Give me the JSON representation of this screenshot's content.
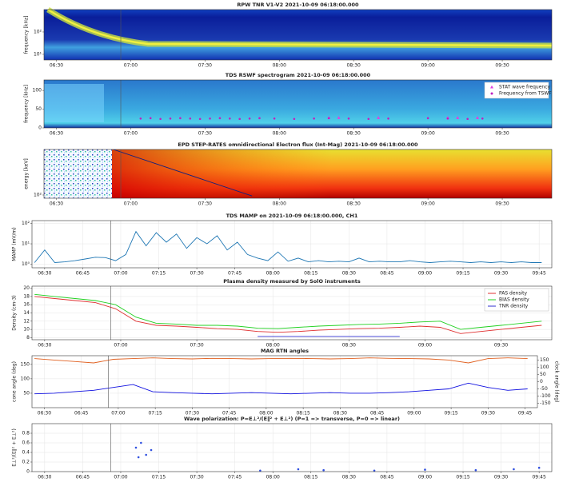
{
  "chart_data": [
    {
      "type": "heatmap",
      "title": "RPW TNR V1-V2 2021-10-09 06:18:00.000",
      "ylabel": "frequency [kHz]",
      "yscale": "log",
      "ylim": [
        5.6,
        1000
      ],
      "yticks": [
        {
          "value": 10,
          "label": "10¹"
        },
        {
          "value": 100,
          "label": "10²"
        }
      ],
      "xlim": [
        385,
        590
      ],
      "xticks": [
        {
          "value": 390,
          "label": "06:30"
        },
        {
          "value": 420,
          "label": "07:00"
        },
        {
          "value": 450,
          "label": "07:30"
        },
        {
          "value": 480,
          "label": "08:00"
        },
        {
          "value": 510,
          "label": "08:30"
        },
        {
          "value": 540,
          "label": "09:00"
        },
        {
          "value": 570,
          "label": "09:30"
        }
      ],
      "vline": 416
    },
    {
      "type": "heatmap",
      "title": "TDS RSWF spectrogram 2021-10-09 06:18:00.000",
      "ylabel": "frequency [kHz]",
      "ylim": [
        0,
        128
      ],
      "yticks": [
        0,
        50,
        100
      ],
      "xlim": [
        385,
        590
      ],
      "xticks": [
        {
          "value": 390,
          "label": "06:30"
        },
        {
          "value": 420,
          "label": "07:00"
        },
        {
          "value": 450,
          "label": "07:30"
        },
        {
          "value": 480,
          "label": "08:00"
        },
        {
          "value": 510,
          "label": "08:30"
        },
        {
          "value": 540,
          "label": "09:00"
        },
        {
          "value": 570,
          "label": "09:30"
        }
      ],
      "vline": 416,
      "legend": "upper right",
      "series": [
        {
          "name": "STAT wave frequency",
          "color": "#e040e0",
          "marker": "triangle",
          "x": [
            500,
            504,
            520,
            548,
            552,
            560
          ],
          "values": [
            27,
            27,
            27,
            27,
            27,
            27
          ]
        },
        {
          "name": "Frequency from TSWF",
          "color": "#c020c0",
          "marker": "dot",
          "x": [
            424,
            428,
            432,
            436,
            440,
            444,
            448,
            452,
            456,
            460,
            464,
            468,
            472,
            478,
            486,
            494,
            500,
            508,
            516,
            524,
            540,
            548,
            556,
            562
          ],
          "values": [
            25,
            26,
            24,
            25,
            26,
            25,
            24,
            25,
            26,
            25,
            24,
            25,
            26,
            25,
            24,
            25,
            26,
            25,
            24,
            25,
            26,
            25,
            24,
            25
          ]
        }
      ]
    },
    {
      "type": "heatmap",
      "title": "EPD STEP-RATES omnidirectional Electron flux (Int-Mag) 2021-10-09 06:18:00.000",
      "ylabel": "energy [keV]",
      "yscale": "log",
      "ylim": [
        85,
        1000
      ],
      "yticks": [
        {
          "value": 100,
          "label": "10²"
        }
      ],
      "xlim": [
        385,
        590
      ],
      "xticks": [
        {
          "value": 390,
          "label": "06:30"
        },
        {
          "value": 420,
          "label": "07:00"
        },
        {
          "value": 450,
          "label": "07:30"
        },
        {
          "value": 480,
          "label": "08:00"
        },
        {
          "value": 510,
          "label": "08:30"
        },
        {
          "value": 540,
          "label": "09:00"
        },
        {
          "value": 570,
          "label": "09:30"
        }
      ],
      "vline": 416,
      "series": [
        {
          "color": "#102080",
          "marker": "line",
          "x": [
            413,
            469
          ],
          "values": [
            1000,
            95
          ]
        }
      ]
    },
    {
      "type": "line",
      "title": "TDS MAMP on 2021-10-09 06:18:00.000, CH1",
      "ylabel": "MAMP (mV/m)",
      "yscale": "log",
      "ylim": [
        0.67,
        137
      ],
      "yticks": [
        {
          "value": 1,
          "label": "10⁰"
        },
        {
          "value": 10,
          "label": "10¹"
        },
        {
          "value": 100,
          "label": "10²"
        }
      ],
      "xlim": [
        385,
        590
      ],
      "xticks": [
        {
          "value": 390,
          "label": "06:30"
        },
        {
          "value": 405,
          "label": "06:45"
        },
        {
          "value": 420,
          "label": "07:00"
        },
        {
          "value": 435,
          "label": "07:15"
        },
        {
          "value": 450,
          "label": "07:30"
        },
        {
          "value": 465,
          "label": "07:45"
        },
        {
          "value": 480,
          "label": "08:00"
        },
        {
          "value": 495,
          "label": "08:15"
        },
        {
          "value": 510,
          "label": "08:30"
        },
        {
          "value": 525,
          "label": "08:45"
        },
        {
          "value": 540,
          "label": "09:00"
        },
        {
          "value": 555,
          "label": "09:15"
        },
        {
          "value": 570,
          "label": "09:30"
        },
        {
          "value": 585,
          "label": "09:45"
        }
      ],
      "vline": 416,
      "x": [
        386,
        390,
        394,
        398,
        402,
        406,
        410,
        414,
        418,
        422,
        426,
        430,
        434,
        438,
        442,
        446,
        450,
        454,
        458,
        462,
        466,
        470,
        474,
        478,
        482,
        486,
        490,
        494,
        498,
        502,
        506,
        510,
        514,
        518,
        522,
        526,
        530,
        534,
        538,
        542,
        546,
        550,
        554,
        558,
        562,
        566,
        570,
        574,
        578,
        582,
        586
      ],
      "series": [
        {
          "color": "#1f77b4",
          "values": [
            1.2,
            5,
            1.2,
            1.3,
            1.5,
            1.8,
            2.2,
            2.1,
            1.5,
            3,
            40,
            8,
            35,
            12,
            30,
            6,
            20,
            10,
            25,
            5,
            12,
            3,
            2,
            1.5,
            4,
            1.4,
            2,
            1.3,
            1.5,
            1.3,
            1.4,
            1.3,
            2,
            1.3,
            1.4,
            1.3,
            1.3,
            1.5,
            1.3,
            1.2,
            1.3,
            1.4,
            1.3,
            1.2,
            1.3,
            1.2,
            1.3,
            1.2,
            1.3,
            1.2,
            1.2
          ]
        }
      ]
    },
    {
      "type": "line",
      "title": "Plasma density measured by SolO instruments",
      "ylabel": "Density (cm-3)",
      "ylim": [
        7.5,
        20.5
      ],
      "yticks": [
        8,
        10,
        12,
        14,
        16,
        18,
        20
      ],
      "xlim": [
        385,
        590
      ],
      "xticks": [
        {
          "value": 390,
          "label": "06:30"
        },
        {
          "value": 420,
          "label": "07:00"
        },
        {
          "value": 450,
          "label": "07:30"
        },
        {
          "value": 480,
          "label": "08:00"
        },
        {
          "value": 510,
          "label": "08:30"
        },
        {
          "value": 540,
          "label": "09:00"
        },
        {
          "value": 570,
          "label": "09:30"
        }
      ],
      "vline": 416,
      "legend": "upper right",
      "x": [
        386,
        394,
        402,
        410,
        418,
        426,
        434,
        442,
        450,
        458,
        466,
        474,
        482,
        490,
        498,
        506,
        514,
        522,
        530,
        538,
        546,
        554,
        562,
        570,
        578,
        586
      ],
      "series": [
        {
          "name": "PAS density",
          "color": "#e03030",
          "values": [
            18,
            17.5,
            17,
            16.5,
            15,
            12,
            11,
            10.8,
            10.5,
            10.2,
            10,
            9.5,
            9.3,
            9.5,
            9.8,
            10,
            10.2,
            10.3,
            10.5,
            10.8,
            10.5,
            9,
            9.5,
            10,
            10.5,
            11
          ]
        },
        {
          "name": "BIAS density",
          "color": "#20d020",
          "values": [
            18.5,
            18,
            17.5,
            17,
            16,
            13,
            11.5,
            11.3,
            11,
            11,
            10.8,
            10.3,
            10.2,
            10.5,
            10.8,
            11,
            11.2,
            11.3,
            11.5,
            11.8,
            12,
            10,
            10.5,
            11,
            11.5,
            12
          ]
        },
        {
          "name": "TNR density",
          "color": "#3030d0",
          "values": [
            null,
            null,
            null,
            null,
            null,
            null,
            null,
            null,
            null,
            null,
            null,
            8.3,
            8.3,
            8.3,
            8.3,
            8.3,
            8.3,
            8.3,
            8.3,
            null,
            null,
            null,
            null,
            null,
            null,
            null
          ]
        }
      ]
    },
    {
      "type": "line",
      "title": "MAG RTN angles",
      "ylabel": "cone angle (deg)",
      "y2label": "clock angle (deg)",
      "ylim": [
        0,
        180
      ],
      "yticks": [
        50,
        100,
        150
      ],
      "y2lim": [
        -180,
        180
      ],
      "y2ticks": [
        -150,
        -100,
        -50,
        0,
        50,
        100,
        150
      ],
      "xlim": [
        385,
        590
      ],
      "xticks": [
        {
          "value": 390,
          "label": "06:30"
        },
        {
          "value": 405,
          "label": "06:45"
        },
        {
          "value": 420,
          "label": "07:00"
        },
        {
          "value": 435,
          "label": "07:15"
        },
        {
          "value": 450,
          "label": "07:30"
        },
        {
          "value": 465,
          "label": "07:45"
        },
        {
          "value": 480,
          "label": "08:00"
        },
        {
          "value": 495,
          "label": "08:15"
        },
        {
          "value": 510,
          "label": "08:30"
        },
        {
          "value": 525,
          "label": "08:45"
        },
        {
          "value": 540,
          "label": "09:00"
        },
        {
          "value": 555,
          "label": "09:15"
        },
        {
          "value": 570,
          "label": "09:30"
        },
        {
          "value": 585,
          "label": "09:45"
        }
      ],
      "vline": 416,
      "x": [
        386,
        394,
        402,
        410,
        418,
        426,
        434,
        442,
        450,
        458,
        466,
        474,
        482,
        490,
        498,
        506,
        514,
        522,
        530,
        538,
        546,
        554,
        562,
        570,
        578,
        586
      ],
      "series": [
        {
          "color": "#1010e0",
          "values": [
            48,
            50,
            55,
            60,
            70,
            80,
            55,
            52,
            50,
            48,
            50,
            52,
            50,
            48,
            50,
            52,
            50,
            50,
            52,
            55,
            60,
            65,
            85,
            70,
            60,
            65
          ]
        },
        {
          "color": "#e06020",
          "axis": "y2",
          "values": [
            160,
            150,
            140,
            130,
            155,
            160,
            165,
            160,
            158,
            162,
            160,
            158,
            160,
            162,
            160,
            158,
            160,
            165,
            162,
            160,
            158,
            150,
            130,
            160,
            165,
            160
          ]
        }
      ]
    },
    {
      "type": "scatter",
      "title": "Wave polarization: P=E⊥²/(E∥² + E⊥²) (P=1 => transverse, P=0 => linear)",
      "ylabel": "E⊥²/(E∥² + E⊥²)",
      "ylim": [
        0,
        1
      ],
      "yticks": [
        0,
        0.2,
        0.4,
        0.6,
        0.8
      ],
      "xlim": [
        385,
        590
      ],
      "xticks": [
        {
          "value": 390,
          "label": "06:30"
        },
        {
          "value": 405,
          "label": "06:45"
        },
        {
          "value": 420,
          "label": "07:00"
        },
        {
          "value": 435,
          "label": "07:15"
        },
        {
          "value": 450,
          "label": "07:30"
        },
        {
          "value": 465,
          "label": "07:45"
        },
        {
          "value": 480,
          "label": "08:00"
        },
        {
          "value": 495,
          "label": "08:15"
        },
        {
          "value": 510,
          "label": "08:30"
        },
        {
          "value": 525,
          "label": "08:45"
        },
        {
          "value": 540,
          "label": "09:00"
        },
        {
          "value": 555,
          "label": "09:15"
        },
        {
          "value": 570,
          "label": "09:30"
        },
        {
          "value": 585,
          "label": "09:45"
        }
      ],
      "vline": 416,
      "series": [
        {
          "color": "#3050e0",
          "x": [
            426,
            428,
            430,
            432,
            427,
            475,
            490,
            500,
            520,
            540,
            560,
            575,
            585
          ],
          "values": [
            0.5,
            0.6,
            0.35,
            0.45,
            0.3,
            0.02,
            0.05,
            0.03,
            0.02,
            0.04,
            0.03,
            0.05,
            0.08
          ]
        }
      ]
    }
  ]
}
